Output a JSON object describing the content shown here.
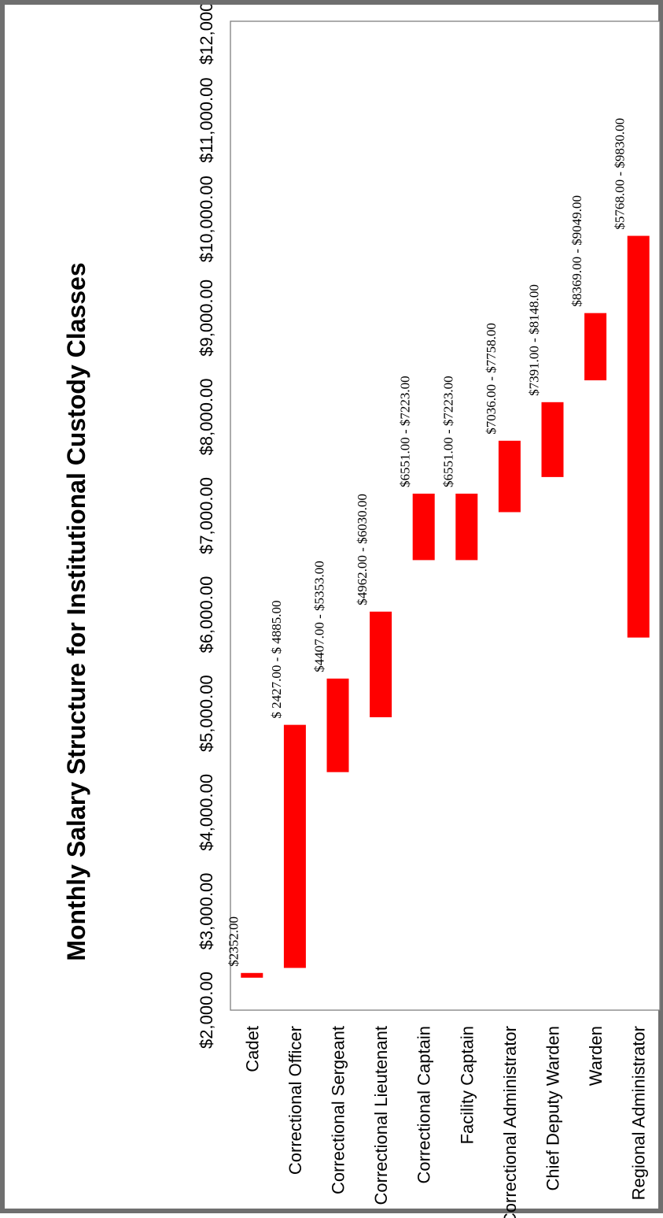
{
  "chart_data": {
    "type": "bar",
    "title": "Monthly Salary Structure for Institutional Custody Classes",
    "xlabel": "",
    "ylabel": "",
    "categories": [
      "Cadet",
      "Correctional Officer",
      "Correctional Sergeant",
      "Correctional Lieutenant",
      "Correctional Captain",
      "Facility Captain",
      "Correctional Administrator",
      "Chief Deputy Warden",
      "Warden",
      "Regional Administrator"
    ],
    "series": [
      {
        "low": [
          2352,
          2427,
          4407,
          4962,
          6551,
          6551,
          7036,
          7391,
          8369,
          5768
        ],
        "high": [
          2352,
          4885,
          5353,
          6030,
          7223,
          7223,
          7758,
          8148,
          9049,
          9830
        ]
      }
    ],
    "data_labels": [
      "$2352.00",
      "$ 2427.00 - $ 4885.00",
      "$4407.00 - $5353.00",
      "$4962.00 - $6030.00",
      "$6551.00 - $7223.00",
      "$6551.00 - $7223.00",
      "$7036.00 - $7758.00",
      "$7391.00 - $8148.00",
      "$8369.00 - $9049.00",
      "$5768.00 - $9830.00"
    ],
    "ylim": [
      2000,
      12000
    ],
    "tick_values": [
      2000,
      3000,
      4000,
      5000,
      6000,
      7000,
      8000,
      9000,
      10000,
      11000,
      12000
    ],
    "tick_labels": [
      "$2,000.00",
      "$3,000.00",
      "$4,000.00",
      "$5,000.00",
      "$6,000.00",
      "$7,000.00",
      "$8,000.00",
      "$9,000.00",
      "$10,000.00",
      "$11,000.00",
      "$12,000.00"
    ],
    "grid": false,
    "bar_color": "#ff0000",
    "orientation": "rotated-90-ccw"
  }
}
